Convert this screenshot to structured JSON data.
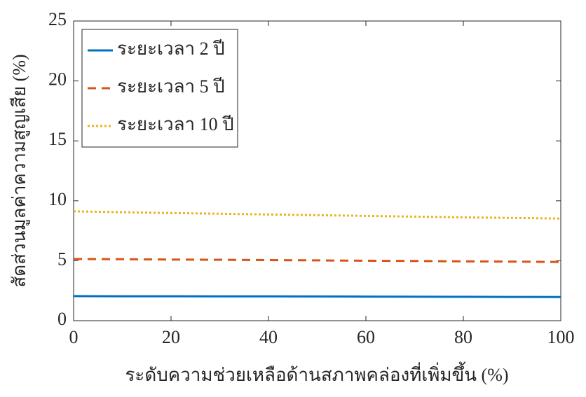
{
  "chart_data": {
    "type": "line",
    "x_label": "ระดับความช่วยเหลือด้านสภาพคล่องที่เพิ่มขึ้น (%)",
    "y_label": "สัดส่วนมูลค่าความสูญเสีย (%)",
    "x": [
      0,
      10,
      20,
      30,
      40,
      50,
      60,
      70,
      80,
      90,
      100
    ],
    "series": [
      {
        "name": "ระยะเวลา 2 ปี",
        "color": "#0072bd",
        "style": "solid",
        "values": [
          2.05,
          2.04,
          2.04,
          2.03,
          2.03,
          2.02,
          2.01,
          2.0,
          1.99,
          1.98,
          1.97
        ]
      },
      {
        "name": "ระยะเวลา 5 ปี",
        "color": "#d95319",
        "style": "dashed",
        "values": [
          5.15,
          5.13,
          5.1,
          5.08,
          5.05,
          5.03,
          5.0,
          4.98,
          4.95,
          4.93,
          4.9
        ]
      },
      {
        "name": "ระยะเวลา 10 ปี",
        "color": "#edb120",
        "style": "dotted",
        "values": [
          9.12,
          9.05,
          8.98,
          8.92,
          8.86,
          8.8,
          8.74,
          8.68,
          8.62,
          8.57,
          8.52
        ]
      }
    ],
    "xlim": [
      0,
      100
    ],
    "xticks": [
      0,
      20,
      40,
      60,
      80,
      100
    ],
    "ylim": [
      0,
      25
    ],
    "yticks": [
      0,
      5,
      10,
      15,
      20,
      25
    ],
    "legend": "upper-left"
  }
}
